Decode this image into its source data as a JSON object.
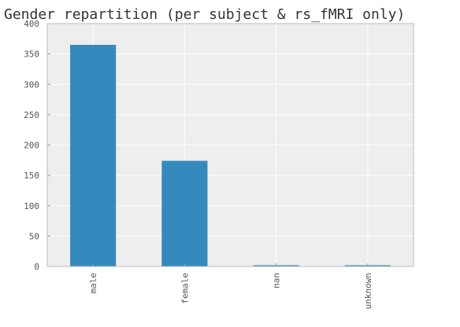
{
  "chart_data": {
    "type": "bar",
    "title": "Gender repartition (per subject & rs_fMRI only)",
    "categories": [
      "male",
      "female",
      "nan",
      "unknown"
    ],
    "values": [
      365,
      174,
      2,
      2
    ],
    "ylim": [
      0,
      400
    ],
    "yticks": [
      0,
      50,
      100,
      150,
      200,
      250,
      300,
      350,
      400
    ],
    "grid": true,
    "colors": {
      "bar": "#348abd",
      "plot_background": "#eeeeee",
      "grid": "#ffffff"
    }
  }
}
